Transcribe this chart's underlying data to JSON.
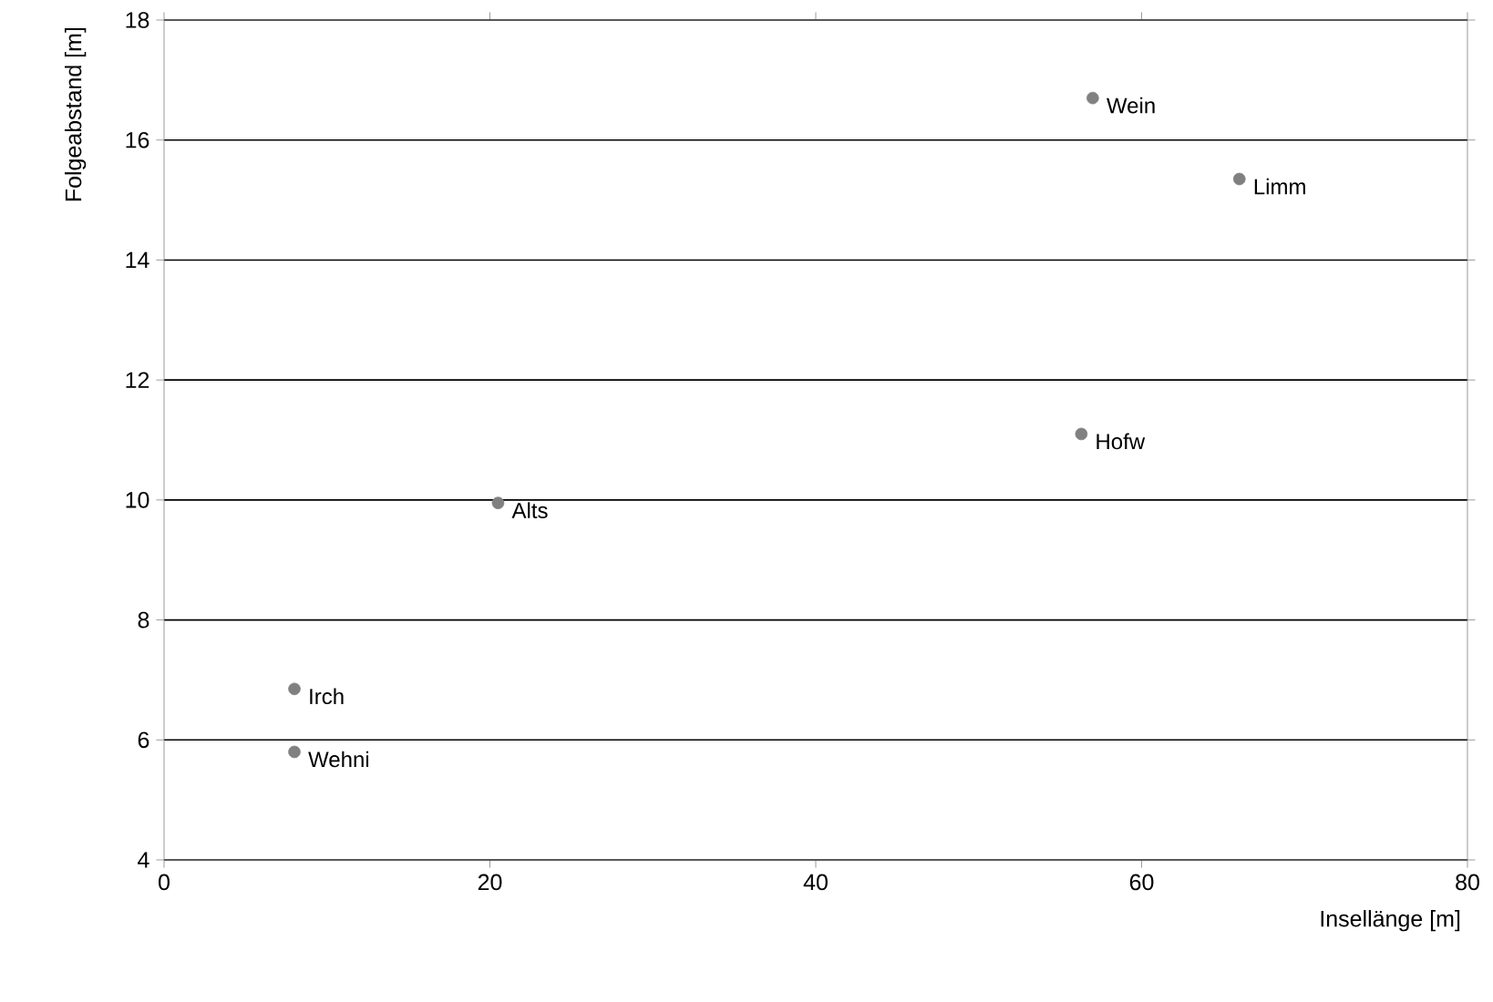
{
  "chart_data": {
    "type": "scatter",
    "xlabel": "Insellänge [m]",
    "ylabel": "Folgeabstand [m]",
    "x": [
      57,
      66,
      56.3,
      20.5,
      8,
      8
    ],
    "series": [
      {
        "color": "#808080",
        "values": [
          16.7,
          15.35,
          11.1,
          9.95,
          6.85,
          5.8
        ]
      }
    ],
    "xlim": [
      0,
      80
    ],
    "ylim": [
      4,
      18
    ],
    "xticks": [
      0,
      20,
      40,
      60,
      80
    ],
    "yticks": [
      4,
      6,
      8,
      10,
      12,
      14,
      16,
      18
    ],
    "grid": "y",
    "annotations": [
      {
        "text": "Wein",
        "x": 57,
        "y": 16.7
      },
      {
        "text": "Limm",
        "x": 66,
        "y": 15.35
      },
      {
        "text": "Hofw",
        "x": 56.3,
        "y": 11.1
      },
      {
        "text": "Alts",
        "x": 20.5,
        "y": 9.95
      },
      {
        "text": "Irch",
        "x": 8,
        "y": 6.85
      },
      {
        "text": "Wehni",
        "x": 8,
        "y": 5.8
      }
    ]
  }
}
